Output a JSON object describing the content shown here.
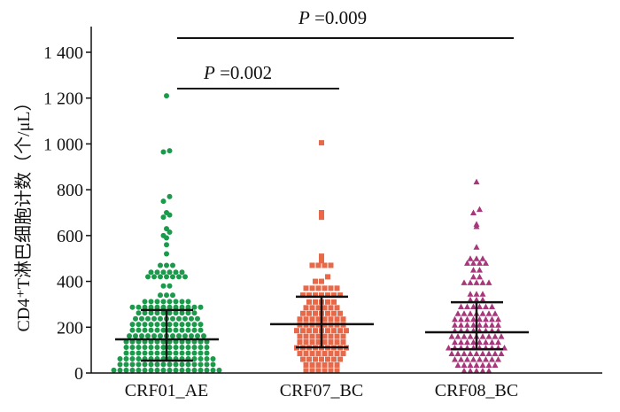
{
  "chart_data": {
    "type": "scatter",
    "subtype": "beeswarm dot plot with median and interquartile range",
    "ylabel": "CD4⁺T淋巴细胞计数（个/μL）",
    "ylim": [
      0,
      1500
    ],
    "yticks": [
      0,
      200,
      400,
      600,
      800,
      1000,
      1200,
      1400
    ],
    "ytick_labels": [
      "0",
      "200",
      "400",
      "600",
      "800",
      "1 000",
      "1 200",
      "1 400"
    ],
    "grid": false,
    "categories": [
      "CRF01_AE",
      "CRF07_BC",
      "CRF08_BC"
    ],
    "series": [
      {
        "name": "CRF01_AE",
        "marker": "circle",
        "color": "#1a9a4a",
        "median": 147,
        "q1": 54,
        "q3": 275,
        "values": [
          12,
          12,
          12,
          12,
          12,
          12,
          12,
          12,
          12,
          12,
          12,
          12,
          12,
          12,
          12,
          12,
          12,
          12,
          37,
          37,
          37,
          37,
          37,
          37,
          37,
          37,
          37,
          37,
          37,
          37,
          37,
          37,
          37,
          37,
          62,
          62,
          62,
          62,
          62,
          62,
          62,
          62,
          62,
          62,
          62,
          62,
          62,
          62,
          62,
          62,
          87,
          87,
          87,
          87,
          87,
          87,
          87,
          87,
          87,
          87,
          87,
          87,
          87,
          87,
          112,
          112,
          112,
          112,
          112,
          112,
          112,
          112,
          112,
          112,
          112,
          112,
          112,
          112,
          137,
          137,
          137,
          137,
          137,
          137,
          137,
          137,
          137,
          137,
          137,
          137,
          137,
          137,
          162,
          162,
          162,
          162,
          162,
          162,
          162,
          162,
          162,
          162,
          162,
          162,
          162,
          187,
          187,
          187,
          187,
          187,
          187,
          187,
          187,
          187,
          187,
          187,
          187,
          212,
          212,
          212,
          212,
          212,
          212,
          212,
          212,
          212,
          212,
          212,
          212,
          237,
          237,
          237,
          237,
          237,
          237,
          237,
          237,
          237,
          237,
          237,
          262,
          262,
          262,
          262,
          262,
          262,
          262,
          262,
          262,
          262,
          287,
          287,
          287,
          287,
          287,
          287,
          287,
          287,
          287,
          287,
          287,
          287,
          312,
          312,
          312,
          312,
          312,
          312,
          312,
          312,
          340,
          340,
          340,
          380,
          380,
          420,
          420,
          420,
          420,
          420,
          420,
          420,
          440,
          440,
          440,
          440,
          440,
          440,
          470,
          470,
          470,
          520,
          560,
          590,
          600,
          615,
          630,
          680,
          690,
          700,
          750,
          770,
          965,
          970,
          1210
        ]
      },
      {
        "name": "CRF07_BC",
        "marker": "square",
        "color": "#e8694a",
        "median": 213,
        "q1": 112,
        "q3": 333,
        "values": [
          10,
          10,
          10,
          10,
          10,
          10,
          35,
          35,
          35,
          35,
          35,
          35,
          60,
          60,
          60,
          60,
          60,
          60,
          60,
          85,
          85,
          85,
          85,
          85,
          85,
          85,
          85,
          110,
          110,
          110,
          110,
          110,
          110,
          110,
          110,
          110,
          135,
          135,
          135,
          135,
          135,
          135,
          135,
          135,
          160,
          160,
          160,
          160,
          160,
          160,
          160,
          160,
          185,
          185,
          185,
          185,
          185,
          185,
          185,
          185,
          185,
          210,
          210,
          210,
          210,
          210,
          210,
          210,
          210,
          235,
          235,
          235,
          235,
          235,
          235,
          235,
          235,
          260,
          260,
          260,
          260,
          260,
          260,
          260,
          285,
          285,
          285,
          285,
          285,
          285,
          310,
          310,
          310,
          310,
          310,
          340,
          340,
          340,
          340,
          340,
          340,
          340,
          370,
          370,
          370,
          370,
          370,
          370,
          400,
          400,
          420,
          470,
          470,
          470,
          470,
          490,
          510,
          680,
          700,
          1005
        ]
      },
      {
        "name": "CRF08_BC",
        "marker": "triangle",
        "color": "#a8367a",
        "median": 178,
        "q1": 104,
        "q3": 309,
        "values": [
          10,
          10,
          10,
          10,
          10,
          35,
          35,
          35,
          35,
          35,
          35,
          35,
          60,
          60,
          60,
          60,
          60,
          60,
          60,
          60,
          85,
          85,
          85,
          85,
          85,
          85,
          85,
          85,
          85,
          110,
          110,
          110,
          110,
          110,
          110,
          110,
          110,
          110,
          110,
          135,
          135,
          135,
          135,
          135,
          135,
          135,
          135,
          160,
          160,
          160,
          160,
          160,
          160,
          160,
          160,
          160,
          185,
          185,
          185,
          185,
          185,
          185,
          185,
          185,
          210,
          210,
          210,
          210,
          210,
          210,
          210,
          210,
          235,
          235,
          235,
          235,
          235,
          235,
          235,
          235,
          260,
          260,
          260,
          260,
          260,
          260,
          260,
          290,
          290,
          290,
          290,
          290,
          290,
          320,
          320,
          320,
          345,
          345,
          345,
          395,
          395,
          395,
          395,
          395,
          420,
          420,
          450,
          450,
          480,
          480,
          480,
          480,
          500,
          500,
          500,
          550,
          640,
          650,
          700,
          715,
          835
        ]
      }
    ],
    "annotations": [
      {
        "groups": [
          "CRF01_AE",
          "CRF08_BC"
        ],
        "label_p": "P",
        "label_value": " =0.009"
      },
      {
        "groups": [
          "CRF01_AE",
          "CRF07_BC"
        ],
        "label_p": "P",
        "label_value": " =0.002"
      }
    ]
  }
}
